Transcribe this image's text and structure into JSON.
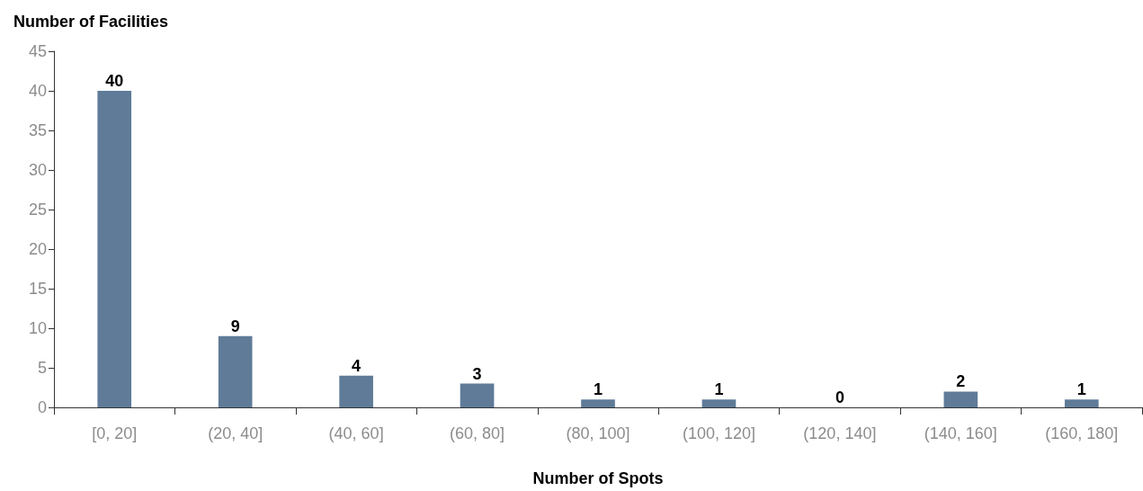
{
  "chart_data": {
    "type": "bar",
    "ylabel": "Number of Facilities",
    "xlabel": "Number of Spots",
    "categories": [
      "[0, 20]",
      "(20, 40]",
      "(40, 60]",
      "(60, 80]",
      "(80, 100]",
      "(100, 120]",
      "(120, 140]",
      "(140, 160]",
      "(160, 180]"
    ],
    "values": [
      40,
      9,
      4,
      3,
      1,
      1,
      0,
      2,
      1
    ],
    "color": "#5f7b98",
    "ylim": [
      0,
      45
    ],
    "yticks": [
      0,
      5,
      10,
      15,
      20,
      25,
      30,
      35,
      40,
      45
    ],
    "data_labels": true
  }
}
